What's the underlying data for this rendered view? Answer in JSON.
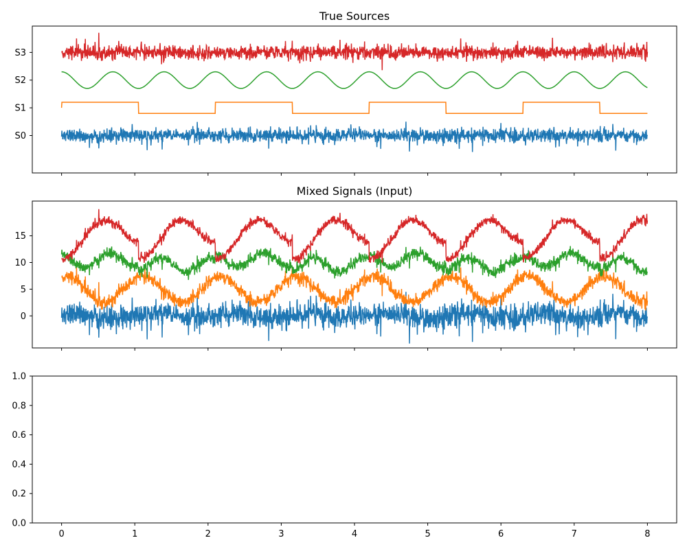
{
  "figure": {
    "panels": [
      {
        "title": "True Sources",
        "ytick_labels": [
          "S0",
          "S1",
          "S2",
          "S3"
        ],
        "show_xtick_labels": false
      },
      {
        "title": "Mixed Signals (Input)",
        "ytick_labels": [
          "0",
          "5",
          "10",
          "15"
        ],
        "show_xtick_labels": false
      },
      {
        "title": "",
        "ytick_labels": [
          "0.0",
          "0.2",
          "0.4",
          "0.6",
          "0.8",
          "1.0"
        ],
        "xtick_labels": [
          "0",
          "1",
          "2",
          "3",
          "4",
          "5",
          "6",
          "7",
          "8"
        ],
        "show_xtick_labels": true
      }
    ]
  },
  "chart_data": [
    {
      "type": "line",
      "title": "True Sources",
      "x_range": [
        0,
        8
      ],
      "yticks": [
        "S0",
        "S1",
        "S2",
        "S3"
      ],
      "series": [
        {
          "color": "#1f77b4",
          "description": "noisy signal",
          "offset_level": 0,
          "samples": 2000
        },
        {
          "color": "#ff7f0e",
          "description": "square wave",
          "offset_level": 1,
          "period": 2.1,
          "samples": 2000
        },
        {
          "color": "#2ca02c",
          "description": "sine wave",
          "offset_level": 2,
          "period": 0.7,
          "samples": 2000
        },
        {
          "color": "#d62728",
          "description": "noisy signal",
          "offset_level": 3,
          "samples": 2000
        }
      ],
      "grid": false
    },
    {
      "type": "line",
      "title": "Mixed Signals (Input)",
      "x_range": [
        0,
        8
      ],
      "ylim": [
        -6,
        21.5
      ],
      "yticks": [
        0,
        5,
        10,
        15
      ],
      "series": [
        {
          "color": "#1f77b4",
          "offset": 0
        },
        {
          "color": "#ff7f0e",
          "offset": 5
        },
        {
          "color": "#2ca02c",
          "offset": 10
        },
        {
          "color": "#d62728",
          "offset": 15
        }
      ],
      "grid": false
    },
    {
      "type": "line",
      "title": "",
      "xlim": [
        -0.4,
        8.4
      ],
      "ylim": [
        0,
        1
      ],
      "xticks": [
        0,
        1,
        2,
        3,
        4,
        5,
        6,
        7,
        8
      ],
      "yticks": [
        0.0,
        0.2,
        0.4,
        0.6,
        0.8,
        1.0
      ],
      "series": [],
      "grid": false
    }
  ]
}
